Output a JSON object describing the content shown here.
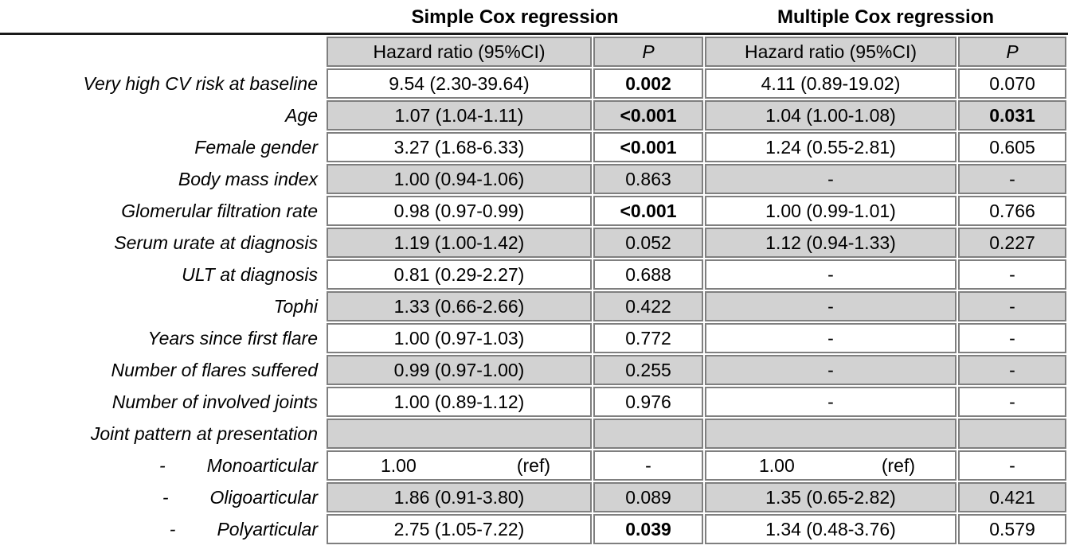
{
  "colors": {
    "row_shade": "#d2d2d2",
    "cell_border": "#7f7f7f",
    "header_rule": "#1a1a1a"
  },
  "table": {
    "group_headers": {
      "simple": "Simple Cox regression",
      "multiple": "Multiple Cox regression"
    },
    "column_headers": {
      "hazard_ratio": "Hazard ratio (95%CI)",
      "p": "P"
    },
    "rows": [
      {
        "label": "Very high CV risk at baseline",
        "indent": false,
        "shaded": false,
        "simple_hr": "9.54 (2.30-39.64)",
        "simple_p": "0.002",
        "simple_p_bold": true,
        "multiple_hr": "4.11 (0.89-19.02)",
        "multiple_p": "0.070",
        "multiple_p_bold": false
      },
      {
        "label": "Age",
        "indent": false,
        "shaded": true,
        "simple_hr": "1.07 (1.04-1.11)",
        "simple_p": "<0.001",
        "simple_p_bold": true,
        "multiple_hr": "1.04 (1.00-1.08)",
        "multiple_p": "0.031",
        "multiple_p_bold": true
      },
      {
        "label": "Female gender",
        "indent": false,
        "shaded": false,
        "simple_hr": "3.27 (1.68-6.33)",
        "simple_p": "<0.001",
        "simple_p_bold": true,
        "multiple_hr": "1.24 (0.55-2.81)",
        "multiple_p": "0.605",
        "multiple_p_bold": false
      },
      {
        "label": "Body mass index",
        "indent": false,
        "shaded": true,
        "simple_hr": "1.00 (0.94-1.06)",
        "simple_p": "0.863",
        "simple_p_bold": false,
        "multiple_hr": "-",
        "multiple_p": "-",
        "multiple_p_bold": false
      },
      {
        "label": "Glomerular filtration rate",
        "indent": false,
        "shaded": false,
        "simple_hr": "0.98 (0.97-0.99)",
        "simple_p": "<0.001",
        "simple_p_bold": true,
        "multiple_hr": "1.00 (0.99-1.01)",
        "multiple_p": "0.766",
        "multiple_p_bold": false
      },
      {
        "label": "Serum urate at diagnosis",
        "indent": false,
        "shaded": true,
        "simple_hr": "1.19 (1.00-1.42)",
        "simple_p": "0.052",
        "simple_p_bold": false,
        "multiple_hr": "1.12 (0.94-1.33)",
        "multiple_p": "0.227",
        "multiple_p_bold": false
      },
      {
        "label": "ULT at diagnosis",
        "indent": false,
        "shaded": false,
        "simple_hr": "0.81 (0.29-2.27)",
        "simple_p": "0.688",
        "simple_p_bold": false,
        "multiple_hr": "-",
        "multiple_p": "-",
        "multiple_p_bold": false
      },
      {
        "label": "Tophi",
        "indent": false,
        "shaded": true,
        "simple_hr": "1.33 (0.66-2.66)",
        "simple_p": "0.422",
        "simple_p_bold": false,
        "multiple_hr": "-",
        "multiple_p": "-",
        "multiple_p_bold": false
      },
      {
        "label": "Years since first flare",
        "indent": false,
        "shaded": false,
        "simple_hr": "1.00 (0.97-1.03)",
        "simple_p": "0.772",
        "simple_p_bold": false,
        "multiple_hr": "-",
        "multiple_p": "-",
        "multiple_p_bold": false
      },
      {
        "label": "Number of flares suffered",
        "indent": false,
        "shaded": true,
        "simple_hr": "0.99 (0.97-1.00)",
        "simple_p": "0.255",
        "simple_p_bold": false,
        "multiple_hr": "-",
        "multiple_p": "-",
        "multiple_p_bold": false
      },
      {
        "label": "Number of involved joints",
        "indent": false,
        "shaded": false,
        "simple_hr": "1.00 (0.89-1.12)",
        "simple_p": "0.976",
        "simple_p_bold": false,
        "multiple_hr": "-",
        "multiple_p": "-",
        "multiple_p_bold": false
      },
      {
        "label": "Joint pattern at presentation",
        "indent": false,
        "shaded": true,
        "simple_hr": "",
        "simple_p": "",
        "simple_p_bold": false,
        "multiple_hr": "",
        "multiple_p": "",
        "multiple_p_bold": false
      },
      {
        "label": "Monoarticular",
        "indent": true,
        "shaded": false,
        "simple_hr": "1.00",
        "simple_hr_ref": "(ref)",
        "simple_p": "-",
        "simple_p_bold": false,
        "multiple_hr": "1.00",
        "multiple_hr_ref": "(ref)",
        "multiple_p": "-",
        "multiple_p_bold": false
      },
      {
        "label": "Oligoarticular",
        "indent": true,
        "shaded": true,
        "simple_hr": "1.86 (0.91-3.80)",
        "simple_p": "0.089",
        "simple_p_bold": false,
        "multiple_hr": "1.35 (0.65-2.82)",
        "multiple_p": "0.421",
        "multiple_p_bold": false
      },
      {
        "label": "Polyarticular",
        "indent": true,
        "shaded": false,
        "simple_hr": "2.75 (1.05-7.22)",
        "simple_p": "0.039",
        "simple_p_bold": true,
        "multiple_hr": "1.34 (0.48-3.76)",
        "multiple_p": "0.579",
        "multiple_p_bold": false
      }
    ]
  }
}
